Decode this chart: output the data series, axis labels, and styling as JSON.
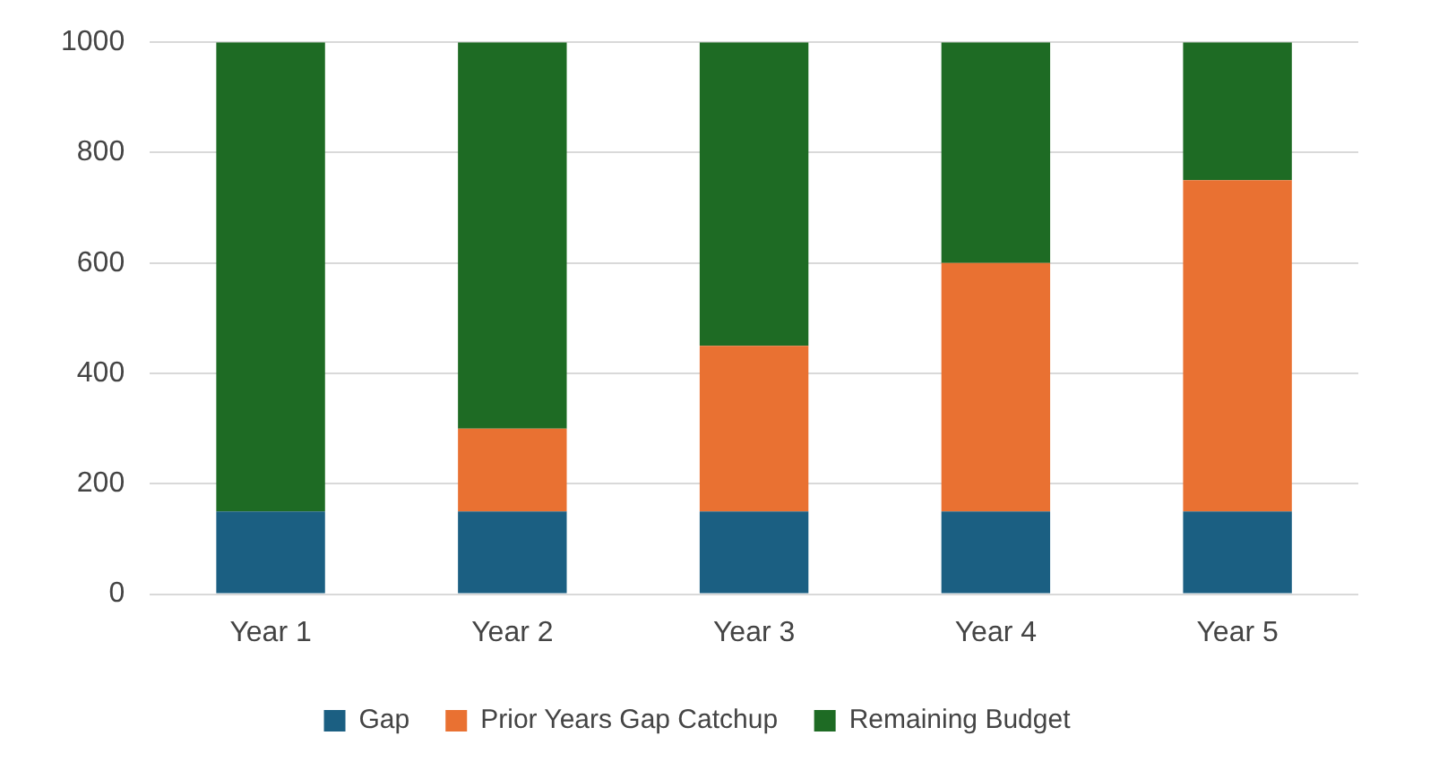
{
  "chart_data": {
    "type": "bar",
    "stacked": true,
    "categories": [
      "Year 1",
      "Year 2",
      "Year 3",
      "Year 4",
      "Year 5"
    ],
    "series": [
      {
        "name": "Gap",
        "color": "#1b5f82",
        "values": [
          150,
          150,
          150,
          150,
          150
        ]
      },
      {
        "name": "Prior Years Gap Catchup",
        "color": "#e97132",
        "values": [
          0,
          150,
          300,
          450,
          600
        ]
      },
      {
        "name": "Remaining Budget",
        "color": "#1e6b24",
        "values": [
          850,
          700,
          550,
          400,
          250
        ]
      }
    ],
    "ylim": [
      0,
      1000
    ],
    "yticks": [
      0,
      200,
      400,
      600,
      800,
      1000
    ],
    "grid": "y",
    "legend": "bottom"
  }
}
